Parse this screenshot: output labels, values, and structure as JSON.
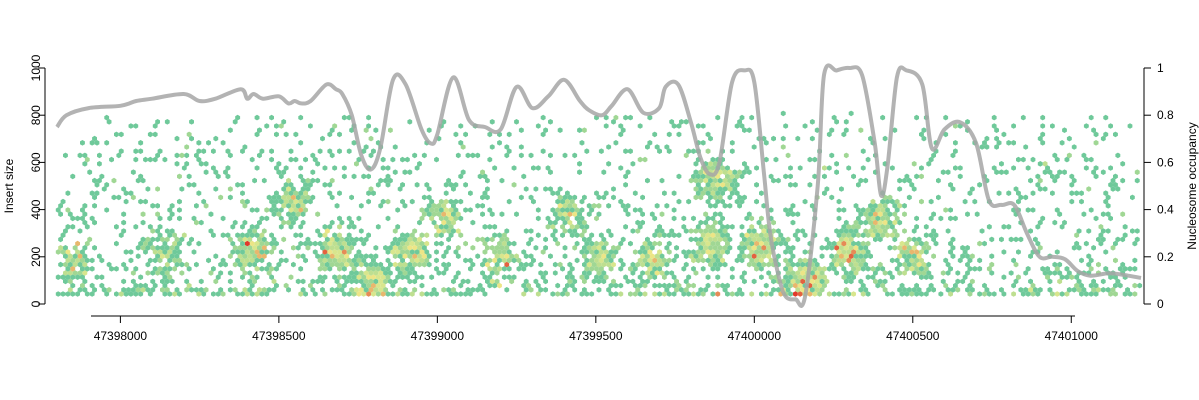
{
  "chart_data": {
    "type": "heatmap",
    "title": "",
    "xlabel": "",
    "ylabel": "Insert size",
    "y2label": "Nucleosome occupancy",
    "xlim": [
      47397800,
      47401220
    ],
    "ylim": [
      0,
      1000
    ],
    "y2lim": [
      0,
      1
    ],
    "grid": false,
    "x_ticks": [
      47398000,
      47398500,
      47399000,
      47399500,
      47400000,
      47400500,
      47401000
    ],
    "x_tick_labels": [
      "47398000",
      "47398500",
      "47399000",
      "47399500",
      "47400000",
      "47400500",
      "47401000"
    ],
    "y_ticks": [
      0,
      200,
      400,
      600,
      800,
      1000
    ],
    "y_tick_labels": [
      "0",
      "200",
      "400",
      "600",
      "800",
      "1000"
    ],
    "y2_ticks": [
      0,
      0.2,
      0.4,
      0.6,
      0.8,
      1
    ],
    "y2_tick_labels": [
      "0",
      "0.2",
      "0.4",
      "0.6",
      "0.8",
      "1"
    ],
    "colors": {
      "low_density": "#6fc99a",
      "mid_density": "#ecec8a",
      "high_density": "#e03a2a",
      "occupancy_line": "#a6a6a6"
    },
    "density_clusters": [
      {
        "x": 47397850,
        "y": 180,
        "density": 0.35
      },
      {
        "x": 47398150,
        "y": 200,
        "density": 0.3
      },
      {
        "x": 47398420,
        "y": 230,
        "density": 0.7
      },
      {
        "x": 47398550,
        "y": 430,
        "density": 0.55
      },
      {
        "x": 47398680,
        "y": 230,
        "density": 0.8
      },
      {
        "x": 47398790,
        "y": 90,
        "density": 0.75
      },
      {
        "x": 47398920,
        "y": 220,
        "density": 0.8
      },
      {
        "x": 47399020,
        "y": 360,
        "density": 0.55
      },
      {
        "x": 47399200,
        "y": 200,
        "density": 0.45
      },
      {
        "x": 47399420,
        "y": 370,
        "density": 0.45
      },
      {
        "x": 47399520,
        "y": 200,
        "density": 0.45
      },
      {
        "x": 47399680,
        "y": 190,
        "density": 0.55
      },
      {
        "x": 47399880,
        "y": 520,
        "density": 0.75
      },
      {
        "x": 47399860,
        "y": 260,
        "density": 0.7
      },
      {
        "x": 47400020,
        "y": 250,
        "density": 0.9
      },
      {
        "x": 47400160,
        "y": 100,
        "density": 1.0
      },
      {
        "x": 47400300,
        "y": 220,
        "density": 0.95
      },
      {
        "x": 47400400,
        "y": 370,
        "density": 0.75
      },
      {
        "x": 47400500,
        "y": 200,
        "density": 0.5
      }
    ],
    "occupancy_series": {
      "x": [
        47397800,
        47397830,
        47397900,
        47398000,
        47398050,
        47398100,
        47398200,
        47398250,
        47398300,
        47398380,
        47398400,
        47398420,
        47398450,
        47398500,
        47398530,
        47398550,
        47398570,
        47398600,
        47398650,
        47398680,
        47398700,
        47398730,
        47398760,
        47398790,
        47398820,
        47398860,
        47398900,
        47398950,
        47398980,
        47399000,
        47399050,
        47399100,
        47399150,
        47399200,
        47399250,
        47399300,
        47399350,
        47399400,
        47399450,
        47399480,
        47399520,
        47399550,
        47399600,
        47399650,
        47399700,
        47399720,
        47399760,
        47399800,
        47399830,
        47399860,
        47399890,
        47399930,
        47399970,
        47400000,
        47400030,
        47400050,
        47400080,
        47400100,
        47400130,
        47400160,
        47400200,
        47400220,
        47400260,
        47400300,
        47400340,
        47400380,
        47400400,
        47400420,
        47400450,
        47400480,
        47400530,
        47400560,
        47400600,
        47400650,
        47400700,
        47400740,
        47400780,
        47400820,
        47400860,
        47400900,
        47400940,
        47400980,
        47401020,
        47401060,
        47401120,
        47401180,
        47401220
      ],
      "y": [
        0.75,
        0.8,
        0.83,
        0.84,
        0.86,
        0.87,
        0.89,
        0.86,
        0.87,
        0.91,
        0.87,
        0.89,
        0.87,
        0.88,
        0.85,
        0.86,
        0.85,
        0.86,
        0.93,
        0.91,
        0.89,
        0.8,
        0.63,
        0.57,
        0.66,
        0.95,
        0.93,
        0.74,
        0.68,
        0.72,
        0.96,
        0.78,
        0.75,
        0.74,
        0.92,
        0.83,
        0.88,
        0.95,
        0.86,
        0.82,
        0.8,
        0.84,
        0.91,
        0.81,
        0.83,
        0.92,
        0.93,
        0.77,
        0.62,
        0.55,
        0.6,
        0.94,
        0.99,
        0.94,
        0.56,
        0.3,
        0.1,
        0.03,
        0.02,
        0.03,
        0.5,
        0.97,
        0.99,
        1.0,
        0.97,
        0.68,
        0.46,
        0.58,
        0.96,
        0.99,
        0.93,
        0.66,
        0.74,
        0.77,
        0.68,
        0.44,
        0.42,
        0.42,
        0.3,
        0.2,
        0.2,
        0.19,
        0.14,
        0.12,
        0.13,
        0.12,
        0.11
      ]
    }
  }
}
